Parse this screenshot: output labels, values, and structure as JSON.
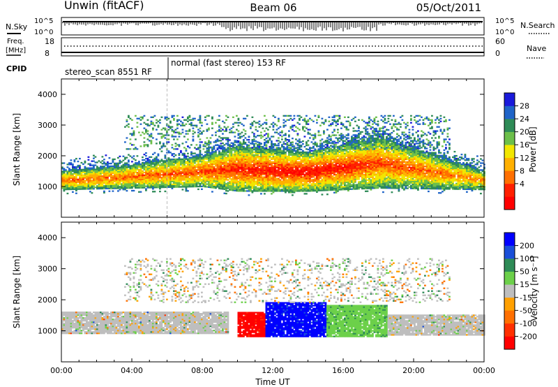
{
  "header": {
    "station": "Unwin (fitACF)",
    "beam": "Beam 06",
    "date": "05/Oct/2011"
  },
  "status_panel": {
    "nsky_label": "N.Sky",
    "nsearch_label": "N.Search",
    "freq_label_1": "Freq.",
    "freq_label_2": "[MHz]",
    "nave_label": "Nave",
    "cpid_label": "CPID",
    "nsky_ticks": [
      "10^5",
      "10^0"
    ],
    "nsearch_ticks": [
      "10^5",
      "10^0"
    ],
    "freq_ticks": [
      "18",
      "8"
    ],
    "nave_ticks": [
      "60",
      "0"
    ],
    "cpid_segments": [
      {
        "label": "stereo_scan 8551 RF",
        "start_hour": 0.0,
        "end_hour": 6.0
      },
      {
        "label": "normal (fast stereo) 153 RF",
        "start_hour": 6.0,
        "end_hour": 24.0
      }
    ],
    "legend_color_nsearch": "#000000",
    "legend_color_nave": "#000000"
  },
  "power_colorbar": {
    "label": "Power [dB]",
    "ticks": [
      "28",
      "24",
      "20",
      "16",
      "12",
      "8",
      "4"
    ],
    "colors": [
      "#1a1adb",
      "#1f64c8",
      "#2e8b57",
      "#6cbf4a",
      "#f2e600",
      "#ffb000",
      "#ff7000",
      "#ff2000",
      "#ff0000"
    ]
  },
  "velocity_colorbar": {
    "label": "Velocity [m s⁻¹]",
    "ticks": [
      "200",
      "100",
      "50",
      "15",
      "-15",
      "-50",
      "-100",
      "-200"
    ],
    "colors": [
      "#0000ff",
      "#1a4fd9",
      "#2e8b57",
      "#6cd04a",
      "#bebebe",
      "#ffa000",
      "#ff7000",
      "#ff3000",
      "#ff0000"
    ]
  },
  "x_axis": {
    "label": "Time UT",
    "ticks": [
      "00:00",
      "04:00",
      "08:00",
      "12:00",
      "16:00",
      "20:00",
      "00:00"
    ]
  },
  "chart_data": [
    {
      "type": "heatmap",
      "title": "Power",
      "xlabel": "Time UT",
      "ylabel": "Slant Range [km]",
      "xlim_hours": [
        0,
        24
      ],
      "ylim_km": [
        0,
        4500
      ],
      "y_ticks": [
        "1000",
        "2000",
        "3000",
        "4000"
      ],
      "colorbar_label": "Power [dB]",
      "colorbar_range": [
        0,
        32
      ],
      "main_echo_band": [
        {
          "hour": 0,
          "low_km": 850,
          "high_km": 1500,
          "peak_db": 24
        },
        {
          "hour": 4,
          "low_km": 900,
          "high_km": 1700,
          "peak_db": 24
        },
        {
          "hour": 8,
          "low_km": 950,
          "high_km": 2000,
          "peak_db": 26
        },
        {
          "hour": 10,
          "low_km": 800,
          "high_km": 2300,
          "peak_db": 28
        },
        {
          "hour": 14,
          "low_km": 800,
          "high_km": 2100,
          "peak_db": 30
        },
        {
          "hour": 18,
          "low_km": 900,
          "high_km": 2600,
          "peak_db": 26
        },
        {
          "hour": 24,
          "low_km": 850,
          "high_km": 1500,
          "peak_db": 22
        }
      ]
    },
    {
      "type": "heatmap",
      "title": "Velocity",
      "xlabel": "Time UT",
      "ylabel": "Slant Range [km]",
      "xlim_hours": [
        0,
        24
      ],
      "ylim_km": [
        0,
        4500
      ],
      "y_ticks": [
        "1000",
        "2000",
        "3000",
        "4000"
      ],
      "colorbar_label": "Velocity [m s⁻¹]",
      "colorbar_range": [
        -250,
        250
      ],
      "regions": [
        {
          "start_hour": 0,
          "end_hour": 9.5,
          "low_km": 900,
          "high_km": 1600,
          "velocity": 0
        },
        {
          "start_hour": 10,
          "end_hour": 11.5,
          "low_km": 800,
          "high_km": 1600,
          "velocity": -220
        },
        {
          "start_hour": 11.5,
          "end_hour": 15,
          "low_km": 800,
          "high_km": 1900,
          "velocity": 220
        },
        {
          "start_hour": 15,
          "end_hour": 18.5,
          "low_km": 800,
          "high_km": 1800,
          "velocity": 60
        },
        {
          "start_hour": 18.5,
          "end_hour": 24,
          "low_km": 850,
          "high_km": 1500,
          "velocity": 0
        }
      ]
    }
  ]
}
